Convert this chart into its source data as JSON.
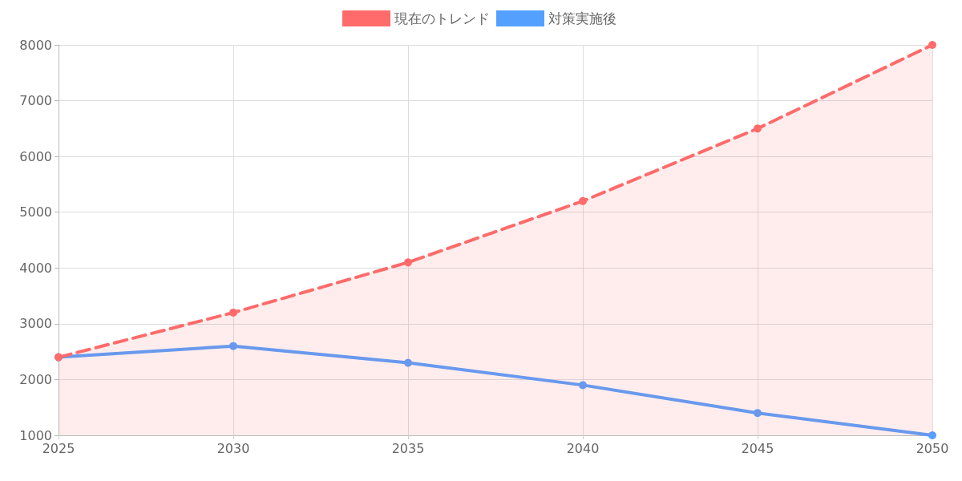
{
  "chart_data": {
    "type": "line",
    "categories": [
      "2025",
      "2030",
      "2035",
      "2040",
      "2045",
      "2050"
    ],
    "series": [
      {
        "name": "現在のトレンド",
        "type": "area",
        "color": "#ff6b6b",
        "line_style": "dashed",
        "values": [
          2400,
          3200,
          4100,
          5200,
          6500,
          8000
        ]
      },
      {
        "name": "対策実施後",
        "type": "line",
        "color": "#54a0ff",
        "line_style": "solid",
        "values": [
          2400,
          2600,
          2300,
          1900,
          1400,
          1000
        ]
      }
    ],
    "ylim": [
      1000,
      8000
    ],
    "yticks": [
      1000,
      2000,
      3000,
      4000,
      5000,
      6000,
      7000,
      8000
    ],
    "grid": true,
    "legend": "top",
    "marker": "circle"
  }
}
